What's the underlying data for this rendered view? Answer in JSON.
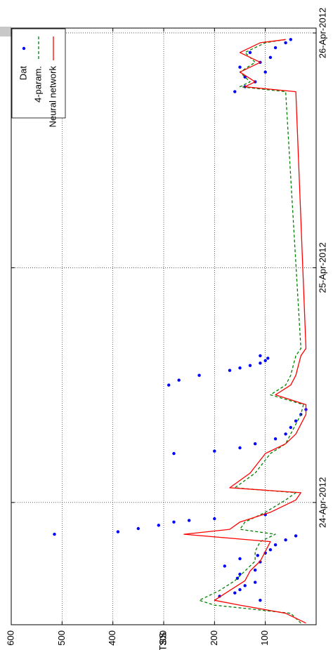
{
  "chart_data": {
    "type": "line",
    "orientation": "rotated-90-ccw",
    "ylabel": "TSS",
    "xlabel": "",
    "ylim": [
      0,
      600
    ],
    "yticks": [
      100,
      200,
      300,
      400,
      500,
      600
    ],
    "xlim": [
      "2012-04-23 11:30",
      "2012-04-26 00:30"
    ],
    "xticks": [
      {
        "value": "2012-04-24 00:00",
        "label": "24-Apr-2012"
      },
      {
        "value": "2012-04-25 00:00",
        "label": "25-Apr-2012"
      },
      {
        "value": "2012-04-26 00:00",
        "label": "26-Apr-2012"
      }
    ],
    "grid": true,
    "legend_position": "top-right",
    "series": [
      {
        "name": "Dat",
        "style": "points",
        "color": "#0000ff",
        "x": [
          "2012-04-23 14:00",
          "2012-04-23 14:25",
          "2012-04-23 14:45",
          "2012-04-23 15:05",
          "2012-04-23 15:30",
          "2012-04-23 15:50",
          "2012-04-23 16:15",
          "2012-04-23 16:40",
          "2012-04-23 17:05",
          "2012-04-23 17:30",
          "2012-04-23 17:55",
          "2012-04-23 18:15",
          "2012-04-23 18:35",
          "2012-04-23 18:50",
          "2012-04-23 19:10",
          "2012-04-23 19:40",
          "2012-04-23 20:10",
          "2012-04-23 20:35",
          "2012-04-23 20:45",
          "2012-04-23 21:00",
          "2012-04-23 21:20",
          "2012-04-23 21:40",
          "2012-04-23 22:00",
          "2012-04-23 22:10",
          "2012-04-23 22:20",
          "2012-04-23 22:45",
          "2012-04-24 05:00",
          "2012-04-24 05:15",
          "2012-04-24 05:35",
          "2012-04-24 06:00",
          "2012-04-24 06:30",
          "2012-04-24 07:00",
          "2012-04-24 07:40",
          "2012-04-24 08:20",
          "2012-04-24 09:00",
          "2012-04-24 09:30",
          "2012-04-24 12:00",
          "2012-04-24 12:30",
          "2012-04-24 13:00",
          "2012-04-24 13:30",
          "2012-04-24 13:45",
          "2012-04-24 14:00",
          "2012-04-24 14:15",
          "2012-04-24 14:30",
          "2012-04-24 14:45",
          "2012-04-24 15:00",
          "2012-04-25 18:00",
          "2012-04-25 18:30",
          "2012-04-25 19:00",
          "2012-04-25 19:30",
          "2012-04-25 20:00",
          "2012-04-25 20:30",
          "2012-04-25 21:00",
          "2012-04-25 21:30",
          "2012-04-25 22:00",
          "2012-04-25 22:30",
          "2012-04-25 23:00",
          "2012-04-25 23:20"
        ],
        "y": [
          110,
          190,
          160,
          150,
          140,
          120,
          155,
          150,
          120,
          180,
          110,
          150,
          115,
          100,
          90,
          80,
          60,
          40,
          515,
          390,
          350,
          310,
          280,
          250,
          200,
          100,
          280,
          200,
          150,
          120,
          80,
          60,
          50,
          40,
          30,
          20,
          290,
          270,
          230,
          170,
          150,
          130,
          110,
          100,
          95,
          110,
          160,
          140,
          120,
          140,
          100,
          150,
          110,
          90,
          130,
          80,
          60,
          50
        ]
      },
      {
        "name": "4-param.",
        "style": "dashed",
        "color": "#008000",
        "x": [
          "2012-04-23 11:40",
          "2012-04-23 12:40",
          "2012-04-23 13:30",
          "2012-04-23 14:00",
          "2012-04-23 15:00",
          "2012-04-23 16:00",
          "2012-04-23 17:00",
          "2012-04-23 18:00",
          "2012-04-23 19:00",
          "2012-04-23 20:00",
          "2012-04-23 20:45",
          "2012-04-23 21:15",
          "2012-04-23 22:00",
          "2012-04-23 23:00",
          "2012-04-24 00:15",
          "2012-04-24 01:00",
          "2012-04-24 01:30",
          "2012-04-24 03:00",
          "2012-04-24 05:00",
          "2012-04-24 06:00",
          "2012-04-24 07:00",
          "2012-04-24 08:00",
          "2012-04-24 09:00",
          "2012-04-24 10:00",
          "2012-04-24 11:00",
          "2012-04-24 12:00",
          "2012-04-24 13:00",
          "2012-04-24 14:00",
          "2012-04-24 15:00",
          "2012-04-24 15:45",
          "2012-04-25 18:00",
          "2012-04-25 18:30",
          "2012-04-25 19:00",
          "2012-04-25 20:00",
          "2012-04-25 21:00",
          "2012-04-25 22:00",
          "2012-04-25 23:00",
          "2012-04-25 23:20"
        ],
        "y": [
          30,
          50,
          200,
          230,
          190,
          160,
          140,
          120,
          120,
          110,
          80,
          150,
          140,
          100,
          60,
          40,
          160,
          120,
          90,
          60,
          50,
          40,
          30,
          25,
          90,
          60,
          50,
          45,
          40,
          30,
          60,
          150,
          130,
          150,
          120,
          140,
          100,
          60
        ]
      },
      {
        "name": "Neural network",
        "style": "solid",
        "color": "#ff0000",
        "x": [
          "2012-04-23 11:40",
          "2012-04-23 12:40",
          "2012-04-23 13:30",
          "2012-04-23 14:00",
          "2012-04-23 15:00",
          "2012-04-23 16:00",
          "2012-04-23 17:00",
          "2012-04-23 18:00",
          "2012-04-23 19:00",
          "2012-04-23 20:00",
          "2012-04-23 20:45",
          "2012-04-23 21:15",
          "2012-04-23 22:00",
          "2012-04-23 23:00",
          "2012-04-24 00:15",
          "2012-04-24 01:00",
          "2012-04-24 01:30",
          "2012-04-24 03:00",
          "2012-04-24 05:00",
          "2012-04-24 06:00",
          "2012-04-24 07:00",
          "2012-04-24 08:00",
          "2012-04-24 09:00",
          "2012-04-24 10:00",
          "2012-04-24 11:00",
          "2012-04-24 12:00",
          "2012-04-24 13:00",
          "2012-04-24 14:00",
          "2012-04-24 15:00",
          "2012-04-24 15:45",
          "2012-04-25 18:00",
          "2012-04-25 18:30",
          "2012-04-25 19:00",
          "2012-04-25 20:00",
          "2012-04-25 21:00",
          "2012-04-25 22:00",
          "2012-04-25 23:00",
          "2012-04-25 23:20"
        ],
        "y": [
          20,
          60,
          150,
          200,
          170,
          140,
          130,
          110,
          100,
          90,
          260,
          170,
          150,
          90,
          40,
          30,
          170,
          130,
          100,
          60,
          40,
          30,
          20,
          20,
          80,
          50,
          40,
          35,
          30,
          20,
          40,
          140,
          120,
          150,
          110,
          150,
          110,
          60
        ]
      }
    ]
  }
}
